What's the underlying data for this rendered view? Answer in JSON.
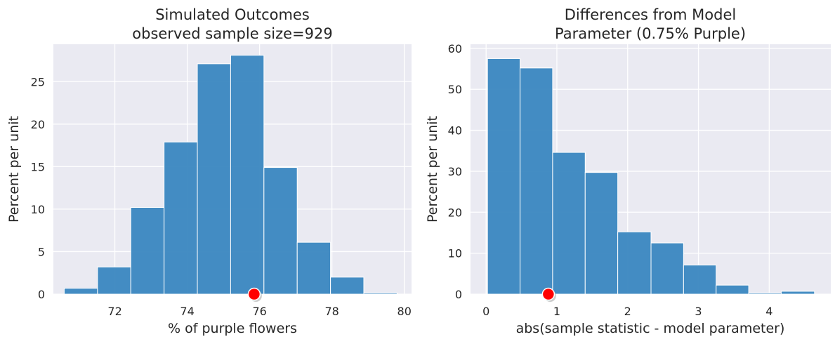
{
  "chart_data": [
    {
      "type": "histogram",
      "title_line1": "Simulated Outcomes",
      "title_line2": "observed sample size=929",
      "xlabel": "% of purple flowers",
      "ylabel": "Percent per unit",
      "xlim": [
        70.3,
        80.2
      ],
      "ylim": [
        0,
        29.4
      ],
      "xticks": [
        72,
        74,
        76,
        78,
        80
      ],
      "yticks": [
        0,
        5,
        10,
        15,
        20,
        25
      ],
      "bins": [
        {
          "x0": 70.6,
          "x1": 71.52,
          "value": 0.7
        },
        {
          "x0": 71.52,
          "x1": 72.44,
          "value": 3.2
        },
        {
          "x0": 72.44,
          "x1": 73.36,
          "value": 10.2
        },
        {
          "x0": 73.36,
          "x1": 74.28,
          "value": 17.9
        },
        {
          "x0": 74.28,
          "x1": 75.2,
          "value": 27.1
        },
        {
          "x0": 75.2,
          "x1": 76.12,
          "value": 28.1
        },
        {
          "x0": 76.12,
          "x1": 77.04,
          "value": 14.9
        },
        {
          "x0": 77.04,
          "x1": 77.96,
          "value": 6.1
        },
        {
          "x0": 77.96,
          "x1": 78.88,
          "value": 2.0
        },
        {
          "x0": 78.88,
          "x1": 79.8,
          "value": 0.15
        }
      ],
      "marker": {
        "x": 75.85,
        "y": 0
      },
      "colors": {
        "bar": "#3a87c0",
        "marker": "#ff0000",
        "background": "#eaeaf2"
      }
    },
    {
      "type": "histogram",
      "title_line1": "Differences from Model",
      "title_line2": "Parameter (0.75% Purple)",
      "xlabel": "abs(sample statistic - model parameter)",
      "ylabel": "Percent per unit",
      "xlim": [
        -0.22,
        4.87
      ],
      "ylim": [
        0,
        61
      ],
      "xticks": [
        0,
        1,
        2,
        3,
        4
      ],
      "yticks": [
        0,
        10,
        20,
        30,
        40,
        50,
        60
      ],
      "bins": [
        {
          "x0": 0.02,
          "x1": 0.48,
          "value": 57.5
        },
        {
          "x0": 0.48,
          "x1": 0.94,
          "value": 55.2
        },
        {
          "x0": 0.94,
          "x1": 1.4,
          "value": 34.6
        },
        {
          "x0": 1.4,
          "x1": 1.86,
          "value": 29.7
        },
        {
          "x0": 1.86,
          "x1": 2.33,
          "value": 15.2
        },
        {
          "x0": 2.33,
          "x1": 2.79,
          "value": 12.5
        },
        {
          "x0": 2.79,
          "x1": 3.25,
          "value": 7.1
        },
        {
          "x0": 3.25,
          "x1": 3.71,
          "value": 2.2
        },
        {
          "x0": 3.71,
          "x1": 4.17,
          "value": 0.3
        },
        {
          "x0": 4.17,
          "x1": 4.64,
          "value": 0.7
        }
      ],
      "marker": {
        "x": 0.88,
        "y": 0
      },
      "colors": {
        "bar": "#3a87c0",
        "marker": "#ff0000",
        "background": "#eaeaf2"
      }
    }
  ]
}
